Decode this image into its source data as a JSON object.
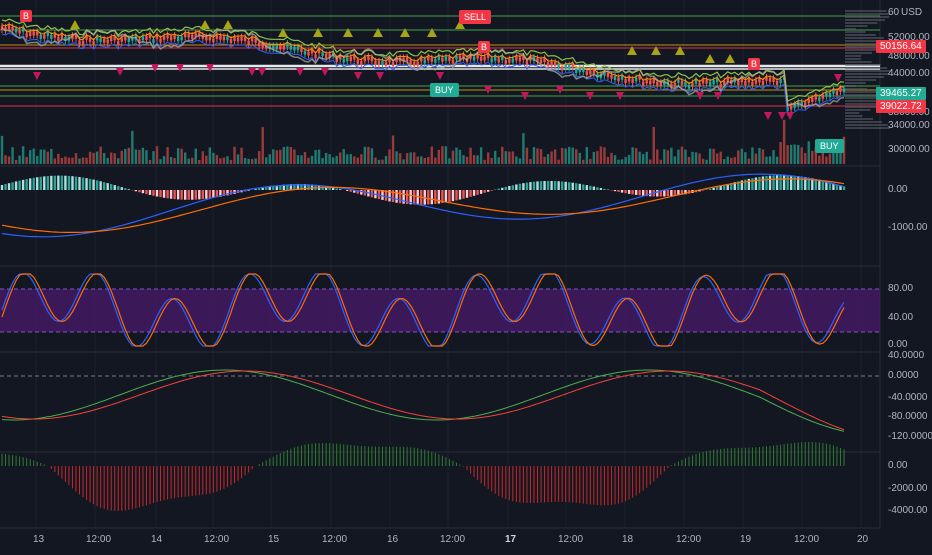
{
  "currency_label": "USD",
  "price_axis": {
    "ticks": [
      "60",
      "52000.00",
      "48000.00",
      "44000.00",
      "38000.00",
      "34000.00",
      "30000.00"
    ],
    "price_tags": [
      {
        "text": "50156.64",
        "color": "#f23645"
      },
      {
        "text": "39465.27",
        "color": "#22ab94"
      },
      {
        "text": "39022.72",
        "color": "#f23645"
      }
    ]
  },
  "macd_axis": {
    "ticks": [
      "0.00",
      "-1000.00"
    ]
  },
  "stoch_axis": {
    "ticks": [
      "80.00",
      "40.00",
      "0.00"
    ]
  },
  "osc_axis": {
    "ticks": [
      "40.0000",
      "0.0000",
      "-40.0000",
      "-80.0000",
      "-120.0000"
    ]
  },
  "hist_axis": {
    "ticks": [
      "0.00",
      "-2000.00",
      "-4000.00"
    ]
  },
  "time_axis": {
    "ticks": [
      "13",
      "12:00",
      "14",
      "12:00",
      "15",
      "12:00",
      "16",
      "12:00",
      "17",
      "12:00",
      "18",
      "12:00",
      "19",
      "12:00",
      "20"
    ]
  },
  "signals": [
    {
      "text": "SELL",
      "kind": "sell"
    },
    {
      "text": "BUY",
      "kind": "buy"
    },
    {
      "text": "BUY",
      "kind": "buy"
    },
    {
      "text": "B",
      "kind": "sell"
    },
    {
      "text": "B",
      "kind": "sell"
    },
    {
      "text": "B",
      "kind": "sell"
    }
  ],
  "colors": {
    "background": "#131722",
    "grid": "#1e222d",
    "up": "#26a69a",
    "down": "#ef5350",
    "stoch_band": "#4a1a6b",
    "triangle_up": "#a8a317",
    "triangle_down": "#c2185b"
  }
}
